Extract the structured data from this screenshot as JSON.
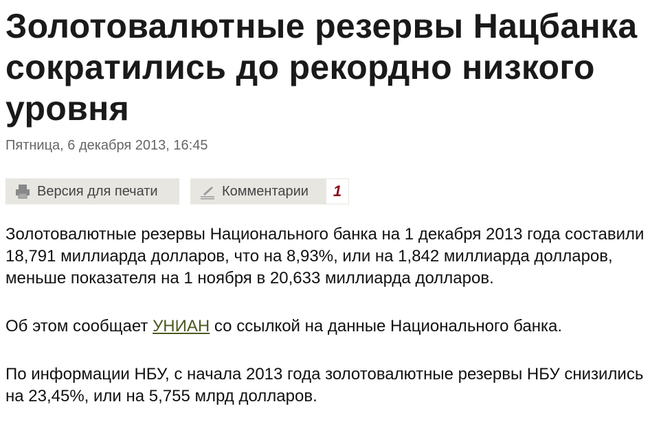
{
  "article": {
    "title": "Золотовалютные резервы Нацбанка сократились до рекордно низкого уровня",
    "date": "Пятница, 6 декабря 2013, 16:45"
  },
  "toolbar": {
    "print_label": "Версия для печати",
    "comments_label": "Комментарии",
    "comments_count": "1"
  },
  "paragraphs": {
    "p1": "Золотовалютные резервы Национального банка на 1 декабря 2013 года составили 18,791 миллиарда долларов, что на 8,93%, или на 1,842 миллиарда долларов, меньше показателя на 1 ноября в 20,633 миллиарда долларов.",
    "p2_before": "Об этом сообщает ",
    "p2_link": "УНИАН",
    "p2_after": " со ссылкой на данные Национального банка.",
    "p3": "По информации НБУ, с начала 2013 года золотовалютные резервы НБУ снизились на 23,45%, или на 5,755 млрд долларов."
  },
  "colors": {
    "link": "#4a5a20",
    "badge": "#8a0a1a",
    "button_bg": "#e8e6e1"
  },
  "icons": {
    "print": "printer-icon",
    "comments": "pen-icon"
  }
}
